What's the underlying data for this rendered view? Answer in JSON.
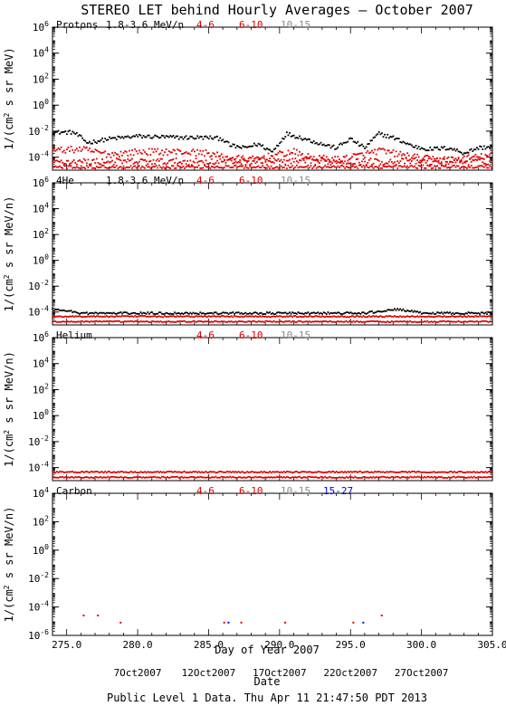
{
  "title": "STEREO LET behind Hourly Averages — October 2007",
  "footer": "Public Level 1 Data. Thu Apr 11 21:47:50 PDT 2013",
  "xlabel": "Day of Year 2007",
  "date_label": "Date",
  "date_ticks": [
    {
      "doy": 280,
      "label": "7Oct2007"
    },
    {
      "doy": 285,
      "label": "12Oct2007"
    },
    {
      "doy": 290,
      "label": "17Oct2007"
    },
    {
      "doy": 295,
      "label": "22Oct2007"
    },
    {
      "doy": 300,
      "label": "27Oct2007"
    }
  ],
  "colors": {
    "black": "#000000",
    "red": "#e00000",
    "grey": "#8a8a8a",
    "blue": "#0000ee"
  },
  "chart_data": [
    {
      "type": "scatter",
      "panel_label": "Protons",
      "energy_label": "1.8-3.6 MeV/n",
      "ylabel": "1/(cm² s sr MeV)",
      "xlim": [
        274,
        305
      ],
      "ylog_range": [
        -5,
        6
      ],
      "yticks": [
        {
          "exp": 6,
          "label": "10^6"
        },
        {
          "exp": 4,
          "label": "10^4"
        },
        {
          "exp": 2,
          "label": "10^2"
        },
        {
          "exp": 0,
          "label": "10^0"
        },
        {
          "exp": -2,
          "label": "10^-2"
        },
        {
          "exp": -4,
          "label": "10^-4"
        }
      ],
      "xticks": [
        275.0,
        280.0,
        285.0,
        290.0,
        295.0,
        300.0,
        305.0
      ],
      "show_xtick_labels": false,
      "legend": [
        {
          "label": "4-6",
          "color": "red"
        },
        {
          "label": "6-10",
          "color": "red"
        },
        {
          "label": "10-15",
          "color": "grey"
        }
      ],
      "series": [
        {
          "color": "black",
          "values_log10": {
            "anchors_doy": [
              274,
              275.5,
              276.5,
              278,
              280,
              283,
              285,
              286,
              286.5,
              287.5,
              288.5,
              289.5,
              290.5,
              291.5,
              293,
              294,
              295,
              296,
              297,
              298,
              299.5,
              300.5,
              302,
              303,
              304,
              305
            ],
            "anchors": [
              -2.1,
              -2.1,
              -2.9,
              -2.6,
              -2.4,
              -2.5,
              -2.5,
              -2.6,
              -3.1,
              -3.3,
              -3.0,
              -3.6,
              -2.2,
              -2.5,
              -3.0,
              -3.3,
              -2.6,
              -3.3,
              -2.2,
              -2.5,
              -3.2,
              -3.4,
              -3.3,
              -3.7,
              -3.3,
              -3.2
            ],
            "scatter": 0.15
          }
        },
        {
          "color": "red",
          "values_log10": {
            "anchors_doy": [
              274,
              276,
              278,
              280,
              283,
              285,
              286,
              288,
              290,
              291,
              292,
              294,
              296,
              297,
              298,
              300,
              302,
              305
            ],
            "anchors": [
              -3.5,
              -3.4,
              -3.8,
              -3.6,
              -3.6,
              -3.7,
              -4.0,
              -4.2,
              -3.8,
              -3.6,
              -4.0,
              -4.2,
              -3.8,
              -3.5,
              -3.7,
              -4.1,
              -4.2,
              -3.9
            ],
            "scatter": 0.25
          }
        },
        {
          "color": "red",
          "values_log10": {
            "anchors_doy": [
              274,
              305
            ],
            "anchors": [
              -4.35,
              -4.35
            ],
            "scatter": 0.25
          }
        },
        {
          "color": "red",
          "values_log10": {
            "anchors_doy": [
              274,
              305
            ],
            "anchors": [
              -4.75,
              -4.75
            ],
            "scatter": 0.12
          }
        }
      ]
    },
    {
      "type": "scatter",
      "panel_label": "4He",
      "energy_label": "1.8-3.6 MeV/n",
      "ylabel": "1/(cm² s sr MeV/n)",
      "xlim": [
        274,
        305
      ],
      "ylog_range": [
        -5,
        6
      ],
      "yticks": [
        {
          "exp": 6,
          "label": "10^6"
        },
        {
          "exp": 4,
          "label": "10^4"
        },
        {
          "exp": 2,
          "label": "10^2"
        },
        {
          "exp": 0,
          "label": "10^0"
        },
        {
          "exp": -2,
          "label": "10^-2"
        },
        {
          "exp": -4,
          "label": "10^-4"
        }
      ],
      "xticks": [
        275.0,
        280.0,
        285.0,
        290.0,
        295.0,
        300.0,
        305.0
      ],
      "show_xtick_labels": false,
      "legend": [
        {
          "label": "4-6",
          "color": "red"
        },
        {
          "label": "6-10",
          "color": "red"
        },
        {
          "label": "10-15",
          "color": "grey"
        }
      ],
      "series": [
        {
          "color": "black",
          "values_log10": {
            "anchors_doy": [
              274,
              275,
              276,
              277,
              296,
              297.5,
              298.5,
              300,
              305
            ],
            "anchors": [
              -3.8,
              -3.9,
              -4.1,
              -4.1,
              -4.1,
              -3.9,
              -3.8,
              -4.1,
              -4.1
            ],
            "scatter": 0.08
          }
        },
        {
          "color": "red",
          "values_log10": {
            "anchors_doy": [
              274,
              305
            ],
            "anchors": [
              -4.35,
              -4.35
            ],
            "scatter": 0.05
          }
        },
        {
          "color": "red",
          "values_log10": {
            "anchors_doy": [
              274,
              305
            ],
            "anchors": [
              -4.75,
              -4.75
            ],
            "scatter": 0.05
          }
        }
      ]
    },
    {
      "type": "scatter",
      "panel_label": "Helium",
      "energy_label": "",
      "ylabel": "1/(cm² s sr MeV/n)",
      "xlim": [
        274,
        305
      ],
      "ylog_range": [
        -5,
        6
      ],
      "yticks": [
        {
          "exp": 6,
          "label": "10^6"
        },
        {
          "exp": 4,
          "label": "10^4"
        },
        {
          "exp": 2,
          "label": "10^2"
        },
        {
          "exp": 0,
          "label": "10^0"
        },
        {
          "exp": -2,
          "label": "10^-2"
        },
        {
          "exp": -4,
          "label": "10^-4"
        }
      ],
      "xticks": [
        275.0,
        280.0,
        285.0,
        290.0,
        295.0,
        300.0,
        305.0
      ],
      "show_xtick_labels": false,
      "legend": [
        {
          "label": "4-6",
          "color": "red"
        },
        {
          "label": "6-10",
          "color": "red"
        },
        {
          "label": "10-15",
          "color": "grey"
        }
      ],
      "series": [
        {
          "color": "red",
          "values_log10": {
            "anchors_doy": [
              274,
              305
            ],
            "anchors": [
              -4.35,
              -4.35
            ],
            "scatter": 0.05
          }
        },
        {
          "color": "red",
          "values_log10": {
            "anchors_doy": [
              274,
              305
            ],
            "anchors": [
              -4.75,
              -4.75
            ],
            "scatter": 0.05
          }
        }
      ]
    },
    {
      "type": "scatter",
      "panel_label": "Carbon",
      "energy_label": "",
      "ylabel": "1/(cm² s sr MeV/n)",
      "xlim": [
        274,
        305
      ],
      "ylog_range": [
        -6,
        4
      ],
      "yticks": [
        {
          "exp": 4,
          "label": "10^4"
        },
        {
          "exp": 2,
          "label": "10^2"
        },
        {
          "exp": 0,
          "label": "10^0"
        },
        {
          "exp": -2,
          "label": "10^-2"
        },
        {
          "exp": -4,
          "label": "10^-4"
        },
        {
          "exp": -6,
          "label": "10^-6"
        }
      ],
      "xticks": [
        275.0,
        280.0,
        285.0,
        290.0,
        295.0,
        300.0,
        305.0
      ],
      "show_xtick_labels": true,
      "legend": [
        {
          "label": "4-6",
          "color": "red"
        },
        {
          "label": "6-10",
          "color": "red"
        },
        {
          "label": "10-15",
          "color": "grey"
        },
        {
          "label": "15-27",
          "color": "blue"
        }
      ],
      "series": [
        {
          "color": "red",
          "points": [
            [
              276.2,
              -4.6
            ],
            [
              277.2,
              -4.6
            ],
            [
              278.8,
              -5.1
            ],
            [
              286.1,
              -5.1
            ],
            [
              287.3,
              -5.1
            ],
            [
              290.4,
              -5.1
            ],
            [
              295.2,
              -5.1
            ],
            [
              297.2,
              -4.6
            ]
          ]
        },
        {
          "color": "blue",
          "points": [
            [
              286.4,
              -5.1
            ],
            [
              295.9,
              -5.1
            ]
          ]
        }
      ]
    }
  ]
}
